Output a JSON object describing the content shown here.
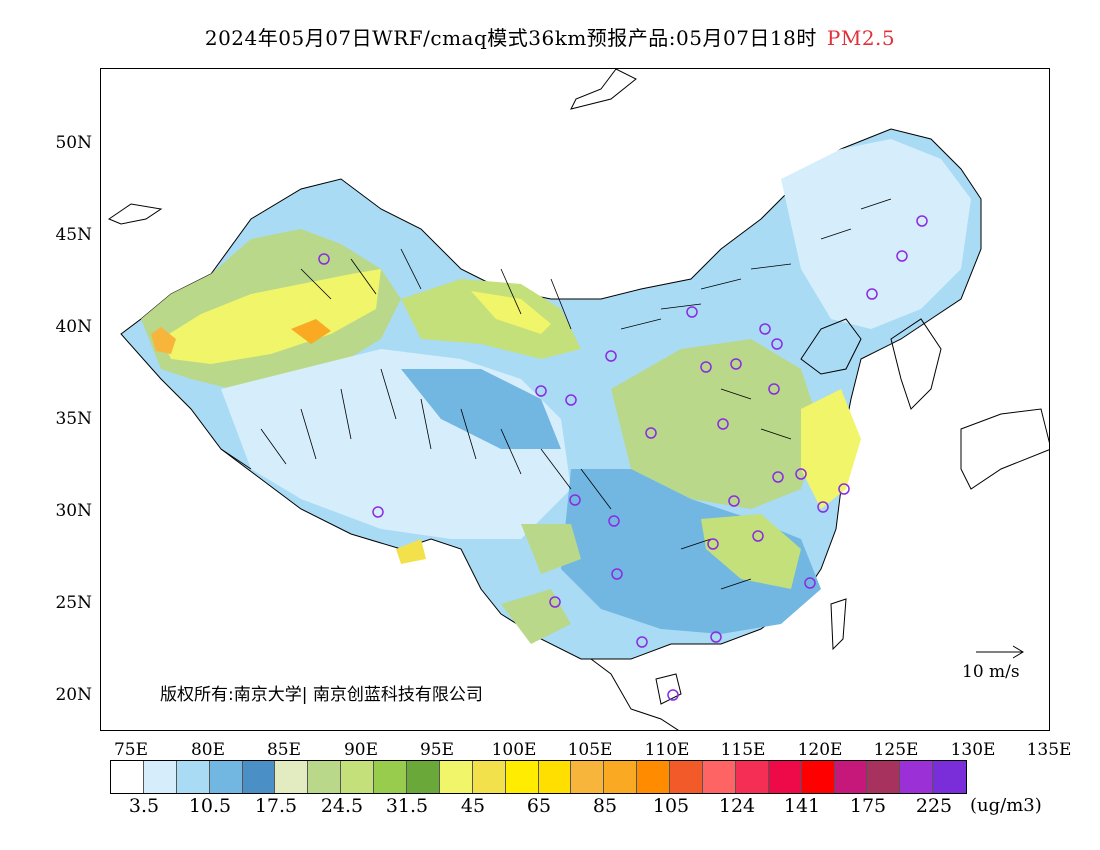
{
  "header": {
    "title": "2024年05月07日WRF/cmaq模式36km预报产品:05月07日18时",
    "variable": "PM2.5",
    "variable_color": "#e0303a"
  },
  "map": {
    "y_axis_labels": [
      "50N",
      "45N",
      "40N",
      "35N",
      "30N",
      "25N",
      "20N"
    ],
    "x_axis_labels": [
      "75E",
      "80E",
      "85E",
      "90E",
      "95E",
      "100E",
      "105E",
      "110E",
      "115E",
      "120E",
      "125E",
      "130E",
      "135E"
    ],
    "copyright": "版权所有:南京大学| 南京创蓝科技有限公司",
    "wind_reference": "10 m/s",
    "station_marker_color": "#8a2be2"
  },
  "legend": {
    "colors": [
      "#ffffff",
      "#d6eefb",
      "#a9dbf5",
      "#72b6e2",
      "#4b8fc7",
      "#e2ecc0",
      "#b9d889",
      "#c3e07a",
      "#98cc4c",
      "#6aa83a",
      "#f0f56a",
      "#f3e14c",
      "#ffec00",
      "#ffdf00",
      "#f7b53c",
      "#f9aa22",
      "#ff8c00",
      "#f25a2a",
      "#ff6464",
      "#f52e55",
      "#ee0a48",
      "#ff0000",
      "#c6177a",
      "#a8325e",
      "#9b30d6",
      "#7a2ed9"
    ],
    "labels": [
      "3.5",
      "10.5",
      "17.5",
      "24.5",
      "31.5",
      "45",
      "65",
      "85",
      "105",
      "124",
      "141",
      "175",
      "225"
    ],
    "unit": "(ug/m3)"
  }
}
